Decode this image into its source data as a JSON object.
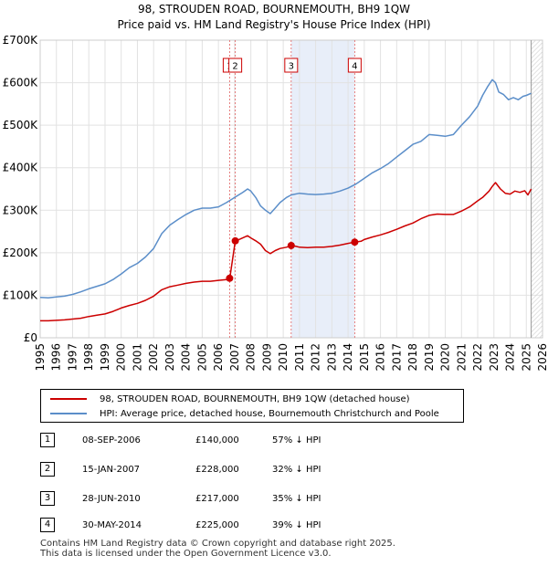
{
  "header": {
    "title": "98, STROUDEN ROAD, BOURNEMOUTH, BH9 1QW",
    "subtitle": "Price paid vs. HM Land Registry's House Price Index (HPI)"
  },
  "chart_data": {
    "type": "line",
    "title": "98, STROUDEN ROAD, BOURNEMOUTH, BH9 1QW",
    "subtitle": "Price paid vs. HM Land Registry's House Price Index (HPI)",
    "xlabel": "",
    "ylabel": "",
    "xlim": [
      1995,
      2026
    ],
    "ylim": [
      0,
      700000
    ],
    "y_ticks": [
      0,
      100000,
      200000,
      300000,
      400000,
      500000,
      600000,
      700000
    ],
    "y_tick_labels": [
      "£0",
      "£100K",
      "£200K",
      "£300K",
      "£400K",
      "£500K",
      "£600K",
      "£700K"
    ],
    "x_ticks": [
      "1995",
      "1996",
      "1997",
      "1998",
      "1999",
      "2000",
      "2001",
      "2002",
      "2003",
      "2004",
      "2005",
      "2006",
      "2007",
      "2008",
      "2009",
      "2010",
      "2011",
      "2012",
      "2013",
      "2014",
      "2015",
      "2016",
      "2017",
      "2018",
      "2019",
      "2020",
      "2021",
      "2022",
      "2023",
      "2024",
      "2025",
      "2026"
    ],
    "grid": true,
    "shaded_range": [
      2010.49,
      2014.41
    ],
    "data_end": 2025.3,
    "series": [
      {
        "name": "98, STROUDEN ROAD, BOURNEMOUTH, BH9 1QW (detached house)",
        "color": "#cc0000",
        "x": [
          1995,
          1995.5,
          1996,
          1996.5,
          1997,
          1997.5,
          1998,
          1998.5,
          1999,
          1999.5,
          2000,
          2000.5,
          2001,
          2001.5,
          2002,
          2002.5,
          2003,
          2003.5,
          2004,
          2004.5,
          2005,
          2005.5,
          2006,
          2006.5,
          2006.69,
          2006.7,
          2007.04,
          2007.2,
          2007.5,
          2007.8,
          2008,
          2008.3,
          2008.6,
          2008.9,
          2009.2,
          2009.5,
          2009.8,
          2010.2,
          2010.49,
          2010.8,
          2011,
          2011.5,
          2012,
          2012.5,
          2013,
          2013.5,
          2014,
          2014.41,
          2014.8,
          2015,
          2015.5,
          2016,
          2016.5,
          2017,
          2017.5,
          2018,
          2018.5,
          2019,
          2019.5,
          2020,
          2020.5,
          2021,
          2021.5,
          2022,
          2022.3,
          2022.7,
          2022.9,
          2023.1,
          2023.4,
          2023.7,
          2024,
          2024.3,
          2024.6,
          2024.9,
          2025.1,
          2025.3
        ],
        "y": [
          40000,
          40000,
          41000,
          42000,
          44000,
          46000,
          50000,
          53000,
          56000,
          62000,
          70000,
          76000,
          81000,
          88000,
          98000,
          113000,
          120000,
          124000,
          128000,
          131000,
          133000,
          133000,
          135000,
          137000,
          140000,
          140000,
          228000,
          230000,
          235000,
          240000,
          235000,
          228000,
          220000,
          205000,
          198000,
          205000,
          210000,
          213000,
          217000,
          215000,
          213000,
          212000,
          213000,
          213000,
          215000,
          218000,
          222000,
          225000,
          227000,
          231000,
          237000,
          242000,
          248000,
          255000,
          263000,
          270000,
          280000,
          288000,
          291000,
          290000,
          290000,
          298000,
          308000,
          322000,
          330000,
          345000,
          356000,
          365000,
          350000,
          340000,
          338000,
          345000,
          342000,
          346000,
          336000,
          350000
        ]
      },
      {
        "name": "HPI: Average price, detached house, Bournemouth Christchurch and Poole",
        "color": "#5b8ec9",
        "x": [
          1995,
          1995.5,
          1996,
          1996.5,
          1997,
          1997.5,
          1998,
          1998.5,
          1999,
          1999.5,
          2000,
          2000.5,
          2001,
          2001.5,
          2002,
          2002.5,
          2003,
          2003.5,
          2004,
          2004.5,
          2005,
          2005.5,
          2006,
          2006.5,
          2007,
          2007.5,
          2007.8,
          2008,
          2008.3,
          2008.6,
          2008.9,
          2009.2,
          2009.5,
          2009.8,
          2010.2,
          2010.5,
          2011,
          2011.5,
          2012,
          2012.5,
          2013,
          2013.5,
          2014,
          2014.5,
          2015,
          2015.5,
          2016,
          2016.5,
          2017,
          2017.5,
          2018,
          2018.5,
          2019,
          2019.5,
          2020,
          2020.5,
          2021,
          2021.5,
          2022,
          2022.3,
          2022.6,
          2022.9,
          2023.1,
          2023.3,
          2023.6,
          2023.9,
          2024.2,
          2024.5,
          2024.8,
          2025,
          2025.3
        ],
        "y": [
          95000,
          94000,
          96000,
          98000,
          102000,
          108000,
          115000,
          121000,
          127000,
          137000,
          150000,
          165000,
          175000,
          190000,
          210000,
          245000,
          265000,
          278000,
          290000,
          300000,
          305000,
          305000,
          308000,
          318000,
          330000,
          342000,
          350000,
          345000,
          330000,
          310000,
          300000,
          292000,
          305000,
          318000,
          330000,
          336000,
          340000,
          338000,
          337000,
          338000,
          340000,
          345000,
          352000,
          362000,
          375000,
          388000,
          398000,
          410000,
          425000,
          440000,
          455000,
          462000,
          478000,
          476000,
          474000,
          478000,
          500000,
          520000,
          545000,
          570000,
          590000,
          607000,
          600000,
          578000,
          572000,
          560000,
          565000,
          560000,
          568000,
          570000,
          575000
        ]
      }
    ],
    "sales": [
      {
        "label": "1",
        "date": "08-SEP-2006",
        "x": 2006.69,
        "price": 140000
      },
      {
        "label": "2",
        "date": "15-JAN-2007",
        "x": 2007.04,
        "price": 228000
      },
      {
        "label": "3",
        "date": "28-JUN-2010",
        "x": 2010.49,
        "price": 217000
      },
      {
        "label": "4",
        "date": "30-MAY-2014",
        "x": 2014.41,
        "price": 225000
      }
    ]
  },
  "legend": {
    "items": [
      {
        "label": "98, STROUDEN ROAD, BOURNEMOUTH, BH9 1QW (detached house)",
        "color": "#cc0000"
      },
      {
        "label": "HPI: Average price, detached house, Bournemouth Christchurch and Poole",
        "color": "#5b8ec9"
      }
    ]
  },
  "sales_table": [
    {
      "num": "1",
      "date": "08-SEP-2006",
      "price": "£140,000",
      "hpi": "57% ↓ HPI"
    },
    {
      "num": "2",
      "date": "15-JAN-2007",
      "price": "£228,000",
      "hpi": "32% ↓ HPI"
    },
    {
      "num": "3",
      "date": "28-JUN-2010",
      "price": "£217,000",
      "hpi": "35% ↓ HPI"
    },
    {
      "num": "4",
      "date": "30-MAY-2014",
      "price": "£225,000",
      "hpi": "39% ↓ HPI"
    }
  ],
  "footer": {
    "line1": "Contains HM Land Registry data © Crown copyright and database right 2025.",
    "line2": "This data is licensed under the Open Government Licence v3.0."
  }
}
